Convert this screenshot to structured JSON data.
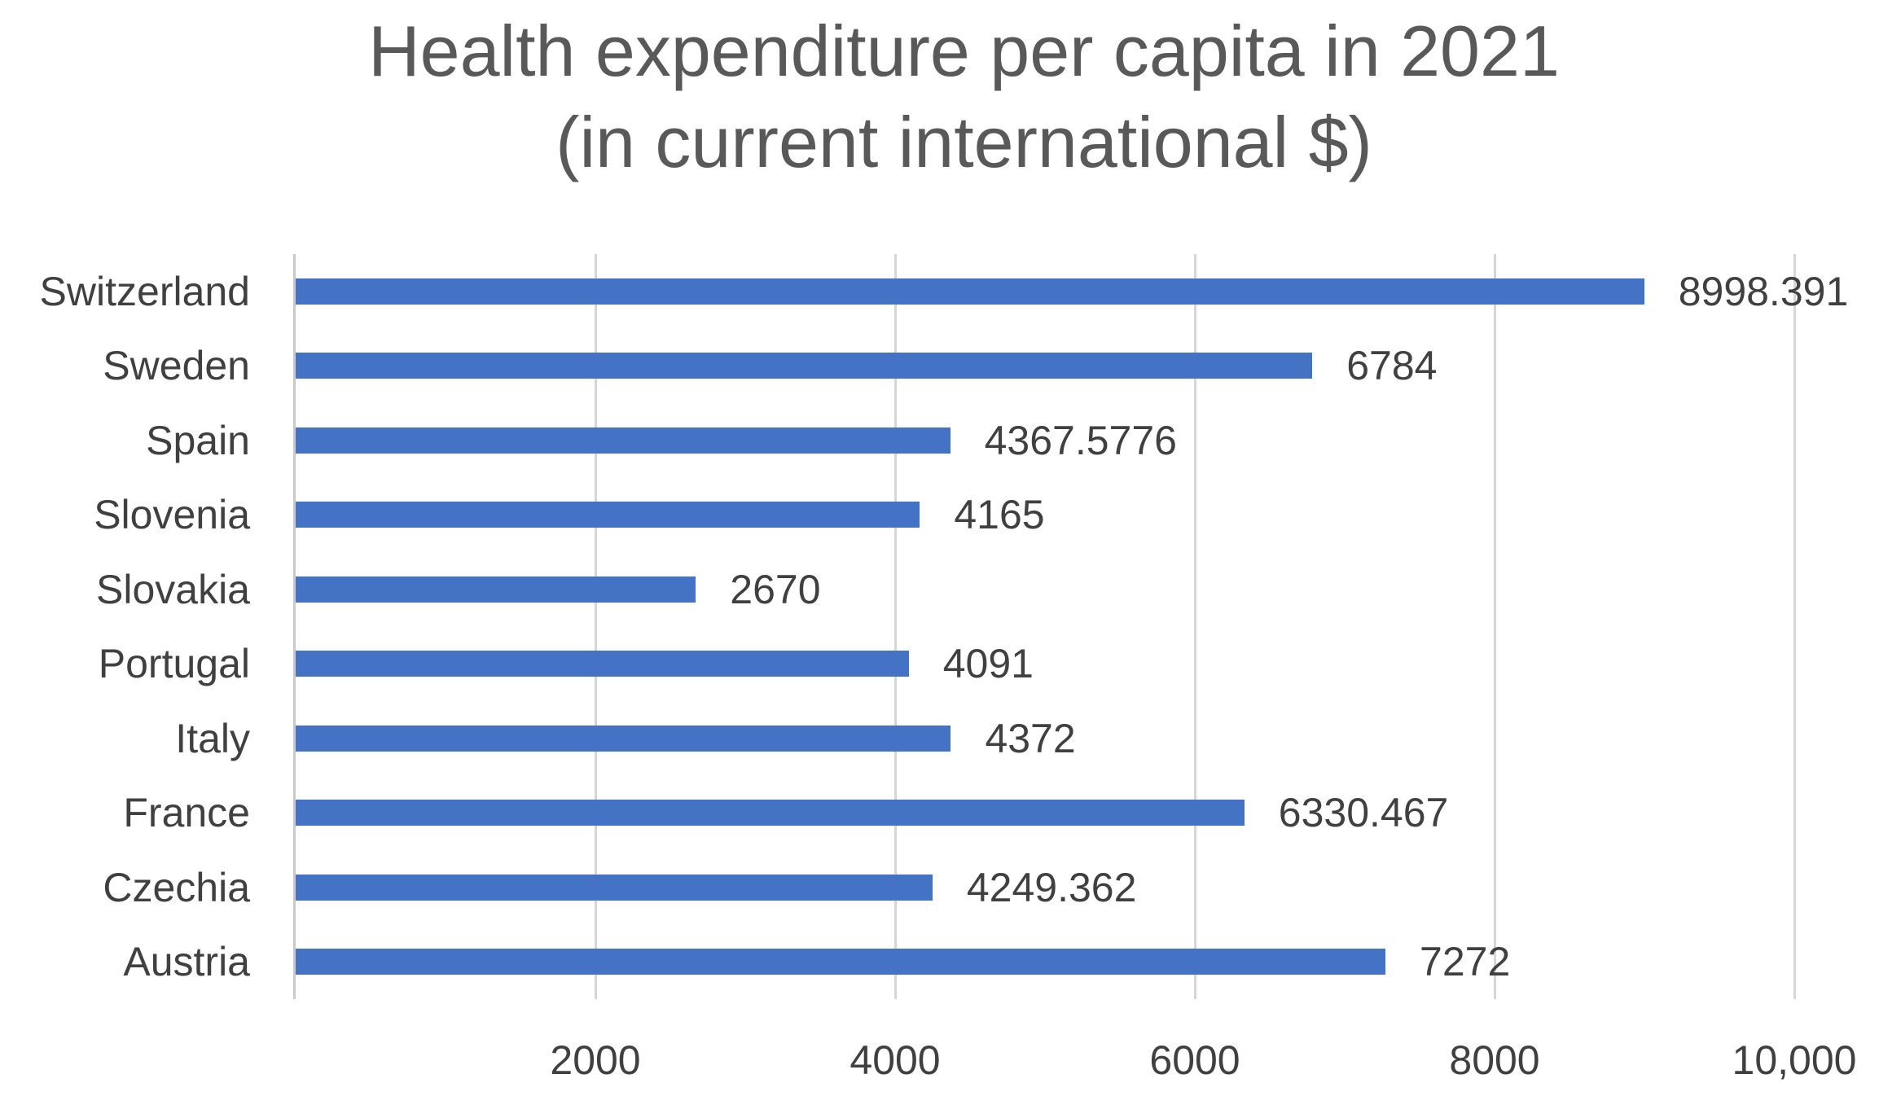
{
  "chart_data": {
    "type": "bar",
    "orientation": "horizontal",
    "title": "Health expenditure per capita in 2021 (in current international $)",
    "title_lines": [
      "Health expenditure per capita in 2021",
      "(in current international $)"
    ],
    "categories": [
      "Switzerland",
      "Sweden",
      "Spain",
      "Slovenia",
      "Slovakia",
      "Portugal",
      "Italy",
      "France",
      "Czechia",
      "Austria"
    ],
    "values": [
      8998.391,
      6784,
      4367.5776,
      4165,
      2670,
      4091,
      4372,
      6330.467,
      4249.362,
      7272
    ],
    "value_labels": [
      "8998.391",
      "6784",
      "4367.5776",
      "4165",
      "2670",
      "4091",
      "4372",
      "6330.467",
      "4249.362",
      "7272"
    ],
    "x_ticks": [
      {
        "value": 2000,
        "label": "2000"
      },
      {
        "value": 4000,
        "label": "4000"
      },
      {
        "value": 6000,
        "label": "6000"
      },
      {
        "value": 8000,
        "label": "8000"
      },
      {
        "value": 10000,
        "label": "10,000"
      }
    ],
    "xlim": [
      0,
      10000
    ],
    "xlabel": "",
    "ylabel": "",
    "grid": true,
    "legend": false,
    "colors": {
      "bar": "#4472C4",
      "gridline": "#D6D6D6",
      "axis_line": "#C9C9C9",
      "title_text": "#595959",
      "label_text": "#404040"
    }
  }
}
